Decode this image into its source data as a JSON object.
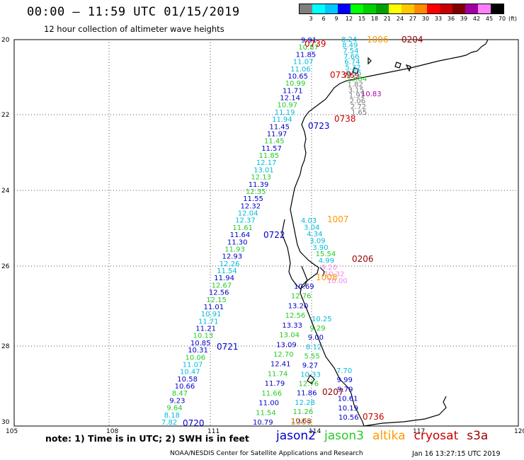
{
  "header": {
    "title": "00:00 — 11:59 UTC 01/15/2019",
    "subtitle": "12 hour collection of altimeter wave heights"
  },
  "legend": {
    "unit": "(ft)",
    "labels": [
      "3",
      "6",
      "9",
      "12",
      "15",
      "18",
      "21",
      "24",
      "27",
      "30",
      "33",
      "36",
      "39",
      "42",
      "45",
      "70"
    ],
    "colors": [
      "#7f7f7f",
      "#00ffff",
      "#00c8ff",
      "#0000ff",
      "#00ff00",
      "#00d000",
      "#00a000",
      "#ffff00",
      "#ffc800",
      "#ff8c00",
      "#ff0000",
      "#c80000",
      "#800000",
      "#a000a0",
      "#ff80ff",
      "#000000"
    ]
  },
  "axes": {
    "lon_labels": [
      "105",
      "108",
      "111",
      "114",
      "117",
      "120"
    ],
    "lat_labels": [
      "20",
      "22",
      "24",
      "26",
      "28",
      "30"
    ]
  },
  "series_colors": {
    "jason2": "#0000cc",
    "jason3": "#22cc22",
    "altika": "#ff9900",
    "cryosat": "#cc0000",
    "s3a": "#990000",
    "gray": "#777777",
    "cyan": "#00bbdd",
    "pink": "#ee88ee",
    "magenta": "#aa00aa"
  },
  "pass_labels": [
    {
      "text": "0720",
      "color": "#0000cc"
    },
    {
      "text": "0721",
      "color": "#0000cc"
    },
    {
      "text": "0722",
      "color": "#0000cc"
    },
    {
      "text": "0723",
      "color": "#0000cc"
    },
    {
      "text": "0739",
      "color": "#cc0000"
    },
    {
      "text": "0739",
      "color": "#cc0000"
    },
    {
      "text": "0738",
      "color": "#cc0000"
    },
    {
      "text": "0736",
      "color": "#cc0000"
    },
    {
      "text": "0204",
      "color": "#990000"
    },
    {
      "text": "0206",
      "color": "#990000"
    },
    {
      "text": "0207",
      "color": "#990000"
    },
    {
      "text": "1006",
      "color": "#ff9900"
    },
    {
      "text": "1007",
      "color": "#ff9900"
    },
    {
      "text": "1008",
      "color": "#ff9900"
    },
    {
      "text": "1009",
      "color": "#ff9900"
    }
  ],
  "track_a": {
    "color_cycle": [
      "#0000cc",
      "#0000cc",
      "#22cc22",
      "#0000cc",
      "#22cc22"
    ],
    "values": [
      "7.82",
      "8.18",
      "9.64",
      "9.23",
      "8.47",
      "10.66",
      "10.58",
      "10.47",
      "11.07",
      "10.06",
      "10.31",
      "10.85",
      "10.13",
      "11.21",
      "11.71",
      "10.91",
      "11.01",
      "12.15",
      "12.56",
      "12.67",
      "11.94",
      "11.54",
      "12.26",
      "12.93",
      "11.93",
      "11.30",
      "11.64",
      "11.61",
      "12.37",
      "12.04",
      "12.32",
      "11.55",
      "12.35",
      "11.39",
      "12.13",
      "13.01",
      "12.17",
      "11.85",
      "11.57",
      "11.45",
      "11.97",
      "11.45",
      "11.94",
      "11.19",
      "10.97",
      "12.14",
      "11.71",
      "10.99",
      "10.65",
      "11.06",
      "11.07",
      "11.85",
      "10.87",
      "9.91"
    ]
  },
  "track_b": {
    "values": [
      "10.79",
      "11.54",
      "11.00",
      "11.66",
      "11.79",
      "11.74",
      "12.41",
      "12.70",
      "13.09",
      "13.04",
      "13.33",
      "12.56",
      "13.20",
      "12.76",
      "10.69"
    ]
  },
  "track_c": {
    "values": [
      "10.68",
      "11.26",
      "12.28",
      "11.86",
      "12.76",
      "10.33",
      "9.27",
      "5.55",
      "8.12",
      "9.00",
      "9.29",
      "10.25"
    ]
  },
  "track_d": {
    "values": [
      "10.56",
      "10.19",
      "10.61",
      "9.79",
      "9.99",
      "7.70"
    ]
  },
  "track_e": {
    "values": [
      "8.24",
      "8.49",
      "7.54",
      "7.66",
      "6.74",
      "5.32",
      "9.55",
      "12.84",
      "1.82",
      "3.15",
      "1.91",
      "2.06",
      "2.72",
      "1.65"
    ]
  },
  "track_f": {
    "values": [
      "4.03",
      "3.04",
      "4.34",
      "3.09",
      "3.90",
      "15.54",
      "4.99",
      "9.20",
      "10.32",
      "10.00"
    ]
  },
  "track_g": {
    "values": [
      "10.83",
      "7.59"
    ]
  },
  "footer": {
    "note": "note: 1) Time is in UTC; 2) SWH is in feet",
    "series": [
      {
        "name": "jason2",
        "color": "#0000cc"
      },
      {
        "name": "jason3",
        "color": "#22cc22"
      },
      {
        "name": "altika",
        "color": "#ff9900"
      },
      {
        "name": "cryosat",
        "color": "#cc0000"
      },
      {
        "name": "s3a",
        "color": "#990000"
      }
    ],
    "credit": "NOAA/NESDIS Center for Satellite Applications and Research",
    "timestamp": "Jan 16 13:27:15 UTC 2019"
  }
}
